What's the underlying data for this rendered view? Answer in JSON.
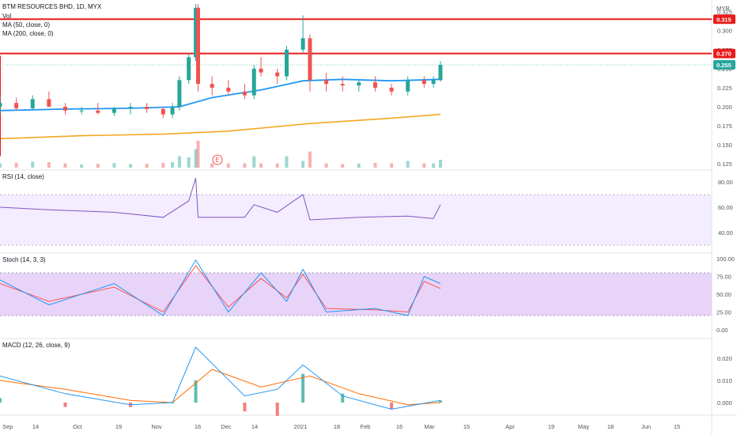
{
  "header": {
    "symbol_line": "BTM RESOURCES BHD, 1D, MYX",
    "vol_label": "Vol",
    "ma50_label": "MA (50, close, 0)",
    "ma200_label": "MA (200, close, 0)",
    "currency": "MYR"
  },
  "colors": {
    "up": "#26a69a",
    "down": "#ef5350",
    "ma50": "#2196f3",
    "ma200": "#f5a623",
    "trend": "#e81c1c",
    "resistance": "#e81c1c",
    "rsi": "#7e57c2",
    "stoch_k": "#2196f3",
    "stoch_d": "#ff5252",
    "macd": "#2196f3",
    "signal": "#ff6d00"
  },
  "x_axis": [
    "Sep",
    "14",
    "Oct",
    "19",
    "Nov",
    "16",
    "Dec",
    "14",
    "2021",
    "18",
    "Feb",
    "16",
    "Mar",
    "15",
    "Apr",
    "19",
    "May",
    "18",
    "Jun",
    "15"
  ],
  "price_axis": [
    "0.325",
    "0.300",
    "0.275",
    "0.250",
    "0.225",
    "0.200",
    "0.175",
    "0.150",
    "0.125"
  ],
  "price_tags": [
    {
      "label": "0.315",
      "value": 0.315,
      "color": "#e81c1c"
    },
    {
      "label": "0.270",
      "value": 0.27,
      "color": "#e81c1c"
    },
    {
      "label": "0.255",
      "value": 0.255,
      "color": "#26a69a"
    }
  ],
  "earnings_marker": "E",
  "rsi_panel": {
    "title": "RSI (14, close)",
    "axis": [
      "80.00",
      "60.00",
      "40.00"
    ]
  },
  "stoch_panel": {
    "title": "Stoch (14, 3, 3)",
    "axis": [
      "100.00",
      "75.00",
      "50.00",
      "25.00",
      "0.00"
    ]
  },
  "macd_panel": {
    "title": "MACD (12, 26, close, 9)",
    "axis": [
      "0.020",
      "0.010",
      "0.000"
    ]
  },
  "chart_data": {
    "type": "candlestick",
    "title": "BTM RESOURCES BHD, 1D, MYX",
    "y_unit": "MYR",
    "ylim": [
      0.12,
      0.335
    ],
    "resistance_levels": [
      0.315,
      0.27
    ],
    "last_price": 0.255,
    "trendline": [
      {
        "x": "2020-08-27",
        "y": 0.135
      },
      {
        "x": "2021-05-28",
        "y": 0.267
      }
    ],
    "candles": [
      {
        "t": "2020-08-27",
        "o": 0.2,
        "h": 0.215,
        "l": 0.19,
        "c": 0.205
      },
      {
        "t": "2020-09-03",
        "o": 0.205,
        "h": 0.212,
        "l": 0.195,
        "c": 0.198
      },
      {
        "t": "2020-09-10",
        "o": 0.198,
        "h": 0.215,
        "l": 0.195,
        "c": 0.21
      },
      {
        "t": "2020-09-17",
        "o": 0.21,
        "h": 0.22,
        "l": 0.2,
        "c": 0.2
      },
      {
        "t": "2020-09-24",
        "o": 0.2,
        "h": 0.205,
        "l": 0.19,
        "c": 0.195
      },
      {
        "t": "2020-10-01",
        "o": 0.195,
        "h": 0.2,
        "l": 0.19,
        "c": 0.195
      },
      {
        "t": "2020-10-08",
        "o": 0.195,
        "h": 0.205,
        "l": 0.19,
        "c": 0.192
      },
      {
        "t": "2020-10-15",
        "o": 0.192,
        "h": 0.2,
        "l": 0.188,
        "c": 0.198
      },
      {
        "t": "2020-10-22",
        "o": 0.198,
        "h": 0.205,
        "l": 0.19,
        "c": 0.2
      },
      {
        "t": "2020-10-29",
        "o": 0.2,
        "h": 0.205,
        "l": 0.192,
        "c": 0.197
      },
      {
        "t": "2020-11-05",
        "o": 0.197,
        "h": 0.2,
        "l": 0.185,
        "c": 0.19
      },
      {
        "t": "2020-11-09",
        "o": 0.19,
        "h": 0.205,
        "l": 0.185,
        "c": 0.2
      },
      {
        "t": "2020-11-12",
        "o": 0.2,
        "h": 0.24,
        "l": 0.195,
        "c": 0.235
      },
      {
        "t": "2020-11-16",
        "o": 0.235,
        "h": 0.27,
        "l": 0.23,
        "c": 0.265
      },
      {
        "t": "2020-11-19",
        "o": 0.265,
        "h": 0.335,
        "l": 0.26,
        "c": 0.33
      },
      {
        "t": "2020-11-20",
        "o": 0.33,
        "h": 0.335,
        "l": 0.22,
        "c": 0.23
      },
      {
        "t": "2020-11-26",
        "o": 0.23,
        "h": 0.24,
        "l": 0.215,
        "c": 0.225
      },
      {
        "t": "2020-12-03",
        "o": 0.225,
        "h": 0.235,
        "l": 0.215,
        "c": 0.22
      },
      {
        "t": "2020-12-10",
        "o": 0.22,
        "h": 0.23,
        "l": 0.21,
        "c": 0.215
      },
      {
        "t": "2020-12-14",
        "o": 0.215,
        "h": 0.255,
        "l": 0.21,
        "c": 0.25
      },
      {
        "t": "2020-12-17",
        "o": 0.25,
        "h": 0.265,
        "l": 0.24,
        "c": 0.245
      },
      {
        "t": "2020-12-24",
        "o": 0.245,
        "h": 0.25,
        "l": 0.23,
        "c": 0.24
      },
      {
        "t": "2020-12-28",
        "o": 0.24,
        "h": 0.28,
        "l": 0.235,
        "c": 0.275
      },
      {
        "t": "2021-01-04",
        "o": 0.275,
        "h": 0.32,
        "l": 0.27,
        "c": 0.29
      },
      {
        "t": "2021-01-07",
        "o": 0.29,
        "h": 0.295,
        "l": 0.22,
        "c": 0.235
      },
      {
        "t": "2021-01-14",
        "o": 0.235,
        "h": 0.245,
        "l": 0.22,
        "c": 0.23
      },
      {
        "t": "2021-01-21",
        "o": 0.23,
        "h": 0.24,
        "l": 0.22,
        "c": 0.228
      },
      {
        "t": "2021-01-28",
        "o": 0.228,
        "h": 0.235,
        "l": 0.22,
        "c": 0.232
      },
      {
        "t": "2021-02-04",
        "o": 0.232,
        "h": 0.24,
        "l": 0.22,
        "c": 0.225
      },
      {
        "t": "2021-02-11",
        "o": 0.225,
        "h": 0.23,
        "l": 0.215,
        "c": 0.22
      },
      {
        "t": "2021-02-18",
        "o": 0.22,
        "h": 0.24,
        "l": 0.215,
        "c": 0.235
      },
      {
        "t": "2021-02-25",
        "o": 0.235,
        "h": 0.24,
        "l": 0.225,
        "c": 0.23
      },
      {
        "t": "2021-03-01",
        "o": 0.23,
        "h": 0.24,
        "l": 0.225,
        "c": 0.235
      },
      {
        "t": "2021-03-04",
        "o": 0.235,
        "h": 0.26,
        "l": 0.233,
        "c": 0.255
      }
    ],
    "ma50": [
      {
        "t": "2020-08-27",
        "y": 0.195
      },
      {
        "t": "2020-09-24",
        "y": 0.197
      },
      {
        "t": "2020-10-22",
        "y": 0.198
      },
      {
        "t": "2020-11-12",
        "y": 0.2
      },
      {
        "t": "2020-11-26",
        "y": 0.212
      },
      {
        "t": "2020-12-17",
        "y": 0.222
      },
      {
        "t": "2021-01-04",
        "y": 0.234
      },
      {
        "t": "2021-01-21",
        "y": 0.236
      },
      {
        "t": "2021-02-11",
        "y": 0.234
      },
      {
        "t": "2021-03-04",
        "y": 0.236
      }
    ],
    "ma200": [
      {
        "t": "2020-08-27",
        "y": 0.158
      },
      {
        "t": "2020-10-01",
        "y": 0.162
      },
      {
        "t": "2020-11-05",
        "y": 0.164
      },
      {
        "t": "2020-12-03",
        "y": 0.168
      },
      {
        "t": "2021-01-07",
        "y": 0.178
      },
      {
        "t": "2021-02-11",
        "y": 0.185
      },
      {
        "t": "2021-03-04",
        "y": 0.19
      }
    ],
    "rsi": [
      {
        "t": "2020-08-27",
        "y": 60
      },
      {
        "t": "2020-09-17",
        "y": 58
      },
      {
        "t": "2020-10-15",
        "y": 56
      },
      {
        "t": "2020-11-05",
        "y": 52
      },
      {
        "t": "2020-11-16",
        "y": 65
      },
      {
        "t": "2020-11-19",
        "y": 83
      },
      {
        "t": "2020-11-20",
        "y": 52
      },
      {
        "t": "2020-12-10",
        "y": 52
      },
      {
        "t": "2020-12-14",
        "y": 62
      },
      {
        "t": "2020-12-24",
        "y": 56
      },
      {
        "t": "2021-01-04",
        "y": 70
      },
      {
        "t": "2021-01-07",
        "y": 50
      },
      {
        "t": "2021-01-28",
        "y": 52
      },
      {
        "t": "2021-02-18",
        "y": 53
      },
      {
        "t": "2021-03-01",
        "y": 51
      },
      {
        "t": "2021-03-04",
        "y": 62
      }
    ],
    "stoch_k": [
      {
        "t": "2020-08-27",
        "y": 70
      },
      {
        "t": "2020-09-17",
        "y": 35
      },
      {
        "t": "2020-10-15",
        "y": 65
      },
      {
        "t": "2020-11-05",
        "y": 20
      },
      {
        "t": "2020-11-19",
        "y": 98
      },
      {
        "t": "2020-12-03",
        "y": 25
      },
      {
        "t": "2020-12-17",
        "y": 80
      },
      {
        "t": "2020-12-28",
        "y": 40
      },
      {
        "t": "2021-01-04",
        "y": 85
      },
      {
        "t": "2021-01-14",
        "y": 25
      },
      {
        "t": "2021-02-04",
        "y": 30
      },
      {
        "t": "2021-02-18",
        "y": 20
      },
      {
        "t": "2021-02-25",
        "y": 75
      },
      {
        "t": "2021-03-04",
        "y": 65
      }
    ],
    "stoch_d": [
      {
        "t": "2020-08-27",
        "y": 65
      },
      {
        "t": "2020-09-17",
        "y": 40
      },
      {
        "t": "2020-10-15",
        "y": 60
      },
      {
        "t": "2020-11-05",
        "y": 25
      },
      {
        "t": "2020-11-19",
        "y": 90
      },
      {
        "t": "2020-12-03",
        "y": 32
      },
      {
        "t": "2020-12-17",
        "y": 72
      },
      {
        "t": "2020-12-28",
        "y": 45
      },
      {
        "t": "2021-01-04",
        "y": 78
      },
      {
        "t": "2021-01-14",
        "y": 30
      },
      {
        "t": "2021-02-04",
        "y": 28
      },
      {
        "t": "2021-02-18",
        "y": 25
      },
      {
        "t": "2021-02-25",
        "y": 68
      },
      {
        "t": "2021-03-04",
        "y": 58
      }
    ],
    "macd": [
      {
        "t": "2020-08-27",
        "y": 0.012
      },
      {
        "t": "2020-09-24",
        "y": 0.004
      },
      {
        "t": "2020-10-22",
        "y": -0.001
      },
      {
        "t": "2020-11-09",
        "y": 0.0
      },
      {
        "t": "2020-11-19",
        "y": 0.025
      },
      {
        "t": "2020-12-10",
        "y": 0.003
      },
      {
        "t": "2020-12-24",
        "y": 0.006
      },
      {
        "t": "2021-01-04",
        "y": 0.017
      },
      {
        "t": "2021-01-21",
        "y": 0.003
      },
      {
        "t": "2021-02-11",
        "y": -0.003
      },
      {
        "t": "2021-03-04",
        "y": 0.001
      }
    ],
    "macd_signal": [
      {
        "t": "2020-08-27",
        "y": 0.01
      },
      {
        "t": "2020-09-24",
        "y": 0.006
      },
      {
        "t": "2020-10-22",
        "y": 0.001
      },
      {
        "t": "2020-11-09",
        "y": 0.0
      },
      {
        "t": "2020-11-26",
        "y": 0.015
      },
      {
        "t": "2020-12-17",
        "y": 0.007
      },
      {
        "t": "2021-01-07",
        "y": 0.012
      },
      {
        "t": "2021-01-28",
        "y": 0.004
      },
      {
        "t": "2021-02-18",
        "y": -0.001
      },
      {
        "t": "2021-03-04",
        "y": 0.0
      }
    ]
  }
}
